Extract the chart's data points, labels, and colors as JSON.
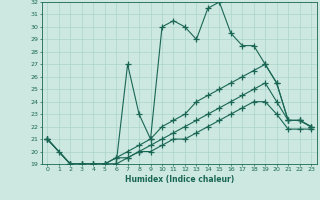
{
  "xlabel": "Humidex (Indice chaleur)",
  "xlim": [
    -0.5,
    23.5
  ],
  "ylim": [
    19,
    32
  ],
  "yticks": [
    19,
    20,
    21,
    22,
    23,
    24,
    25,
    26,
    27,
    28,
    29,
    30,
    31,
    32
  ],
  "xticks": [
    0,
    1,
    2,
    3,
    4,
    5,
    6,
    7,
    8,
    9,
    10,
    11,
    12,
    13,
    14,
    15,
    16,
    17,
    18,
    19,
    20,
    21,
    22,
    23
  ],
  "bg_color": "#cce8e0",
  "grid_color": "#aad4cc",
  "line_color": "#1a6655",
  "line_width": 0.8,
  "marker": "+",
  "markersize": 4,
  "markeredgewidth": 0.9,
  "series": [
    {
      "x": [
        0,
        1,
        2,
        3,
        4,
        5,
        6,
        7,
        8,
        9,
        10,
        11,
        12,
        13,
        14,
        15,
        16,
        17,
        18,
        19,
        20,
        21,
        22,
        23
      ],
      "y": [
        21,
        20,
        19,
        19,
        19,
        19,
        19,
        27,
        23,
        21,
        30,
        30.5,
        30,
        29,
        31.5,
        32,
        29.5,
        28.5,
        28.5,
        27,
        25.5,
        22.5,
        22.5,
        22
      ]
    },
    {
      "x": [
        0,
        2,
        3,
        4,
        5,
        6,
        7,
        8,
        9,
        10,
        11,
        12,
        13,
        14,
        15,
        16,
        17,
        18,
        19,
        20,
        21,
        22,
        23
      ],
      "y": [
        21,
        19,
        19,
        19,
        19,
        19.5,
        20,
        20.5,
        21,
        22,
        22.5,
        23,
        24,
        24.5,
        25,
        25.5,
        26,
        26.5,
        27,
        25.5,
        22.5,
        22.5,
        22
      ]
    },
    {
      "x": [
        0,
        2,
        3,
        4,
        5,
        6,
        7,
        8,
        9,
        10,
        11,
        12,
        13,
        14,
        15,
        16,
        17,
        18,
        19,
        20,
        21,
        22,
        23
      ],
      "y": [
        21,
        19,
        19,
        19,
        19,
        19.5,
        19.5,
        20,
        20.5,
        21,
        21.5,
        22,
        22.5,
        23,
        23.5,
        24,
        24.5,
        25,
        25.5,
        24,
        22.5,
        22.5,
        22
      ]
    },
    {
      "x": [
        0,
        2,
        3,
        4,
        5,
        6,
        7,
        8,
        9,
        10,
        11,
        12,
        13,
        14,
        15,
        16,
        17,
        18,
        19,
        20,
        21,
        22,
        23
      ],
      "y": [
        21,
        19,
        19,
        19,
        19,
        19,
        19.5,
        20,
        20,
        20.5,
        21,
        21,
        21.5,
        22,
        22.5,
        23,
        23.5,
        24,
        24,
        23,
        21.8,
        21.8,
        21.8
      ]
    }
  ]
}
